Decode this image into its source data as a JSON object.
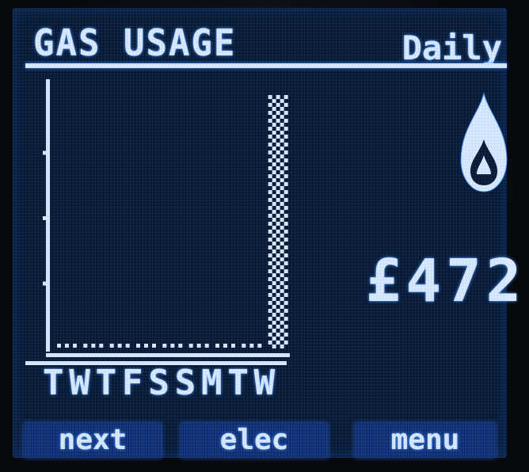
{
  "header": {
    "title": "GAS USAGE",
    "period": "Daily"
  },
  "chart_data": {
    "type": "bar",
    "categories": [
      "T",
      "W",
      "T",
      "F",
      "S",
      "S",
      "M",
      "T",
      "W"
    ],
    "values": [
      0,
      0,
      0,
      0,
      0,
      0,
      0,
      0,
      100
    ],
    "ylim": [
      0,
      100
    ]
  },
  "summary": {
    "icon": "gas-flame-icon",
    "cost": "£472"
  },
  "softkeys": {
    "next": "next",
    "elec": "elec",
    "menu": "menu"
  },
  "colors": {
    "screen": "#071830",
    "glyph": "#dbe9ff",
    "glow": "#3f8bff",
    "softkey": "#10327a"
  }
}
